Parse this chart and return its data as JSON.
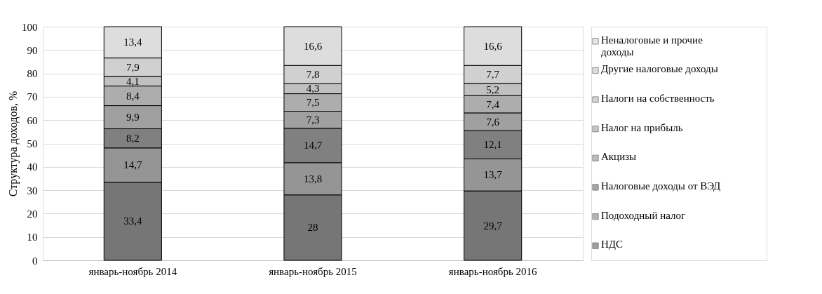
{
  "chart_data": {
    "type": "bar",
    "stacked": true,
    "ylabel": "Структура доходов, %",
    "categories": [
      "январь-ноябрь 2014",
      "январь-ноябрь 2015",
      "январь-ноябрь 2016"
    ],
    "series": [
      {
        "name": "НДС",
        "color": "#767676",
        "values": [
          33.4,
          28,
          29.7
        ],
        "value_labels": [
          "33,4",
          "28",
          "29,7"
        ]
      },
      {
        "name": "Подоходный налог",
        "color": "#959595",
        "values": [
          14.7,
          13.8,
          13.7
        ],
        "value_labels": [
          "14,7",
          "13,8",
          "13,7"
        ]
      },
      {
        "name": "Налоговые доходы от ВЭД",
        "color": "#808080",
        "values": [
          8.2,
          14.7,
          12.1
        ],
        "value_labels": [
          "8,2",
          "14,7",
          "12,1"
        ]
      },
      {
        "name": "Акцизы",
        "color": "#a0a0a0",
        "values": [
          9.9,
          7.3,
          7.6
        ],
        "value_labels": [
          "9,9",
          "7,3",
          "7,6"
        ]
      },
      {
        "name": "Налог на прибыль",
        "color": "#adadad",
        "values": [
          8.4,
          7.5,
          7.4
        ],
        "value_labels": [
          "8,4",
          "7,5",
          "7,4"
        ]
      },
      {
        "name": "Налоги на собственность",
        "color": "#c0c0c0",
        "values": [
          4.1,
          4.3,
          5.2
        ],
        "value_labels": [
          "4,1",
          "4,3",
          "5,2"
        ]
      },
      {
        "name": "Другие налоговые доходы",
        "color": "#d0d0d0",
        "values": [
          7.9,
          7.8,
          7.7
        ],
        "value_labels": [
          "7,9",
          "7,8",
          "7,7"
        ]
      },
      {
        "name": "Неналоговые и прочие доходы",
        "color": "#dddddd",
        "values": [
          13.4,
          16.6,
          16.6
        ],
        "value_labels": [
          "13,4",
          "16,6",
          "16,6"
        ]
      }
    ],
    "ylim": [
      0,
      100
    ],
    "yticks": [
      0,
      10,
      20,
      30,
      40,
      50,
      60,
      70,
      80,
      90,
      100
    ],
    "grid": "y",
    "legend": "right"
  }
}
